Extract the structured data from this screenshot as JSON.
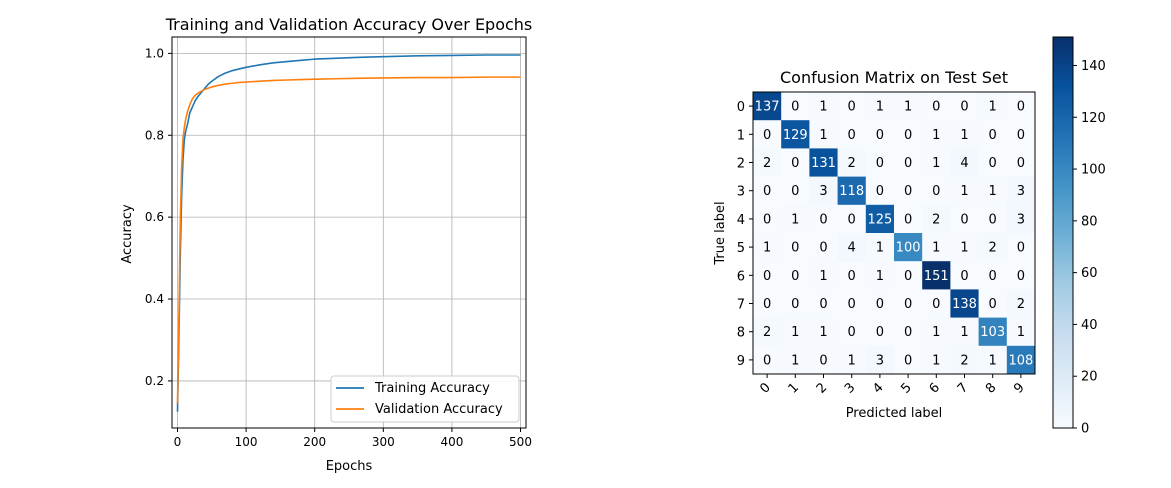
{
  "chart_data": [
    {
      "type": "line",
      "title": "Training and Validation Accuracy Over Epochs",
      "xlabel": "Epochs",
      "ylabel": "Accuracy",
      "xlim": [
        -8,
        508
      ],
      "ylim": [
        0.085,
        1.04
      ],
      "xticks": [
        0,
        100,
        200,
        300,
        400,
        500
      ],
      "yticks": [
        0.2,
        0.4,
        0.6,
        0.8,
        1.0
      ],
      "xtick_labels": [
        "0",
        "100",
        "200",
        "300",
        "400",
        "500"
      ],
      "ytick_labels": [
        "0.2",
        "0.4",
        "0.6",
        "0.8",
        "1.0"
      ],
      "grid": true,
      "legend_position": "bottom-right",
      "series": [
        {
          "name": "Training Accuracy",
          "color": "#1f77b4",
          "x": [
            0,
            2,
            4,
            6,
            8,
            10,
            12,
            15,
            18,
            22,
            26,
            30,
            35,
            40,
            45,
            50,
            60,
            70,
            80,
            90,
            100,
            120,
            140,
            160,
            180,
            200,
            230,
            260,
            300,
            350,
            400,
            450,
            500
          ],
          "y": [
            0.125,
            0.3,
            0.5,
            0.65,
            0.74,
            0.79,
            0.81,
            0.83,
            0.855,
            0.87,
            0.885,
            0.895,
            0.905,
            0.915,
            0.925,
            0.932,
            0.944,
            0.952,
            0.958,
            0.962,
            0.966,
            0.972,
            0.977,
            0.98,
            0.983,
            0.986,
            0.988,
            0.99,
            0.992,
            0.994,
            0.995,
            0.996,
            0.996
          ]
        },
        {
          "name": "Validation Accuracy",
          "color": "#ff7f0e",
          "x": [
            0,
            2,
            4,
            6,
            8,
            10,
            12,
            15,
            18,
            22,
            26,
            30,
            35,
            40,
            45,
            50,
            60,
            70,
            80,
            90,
            100,
            120,
            140,
            160,
            180,
            200,
            230,
            260,
            300,
            350,
            400,
            450,
            500
          ],
          "y": [
            0.145,
            0.35,
            0.58,
            0.72,
            0.79,
            0.82,
            0.84,
            0.86,
            0.875,
            0.89,
            0.898,
            0.903,
            0.908,
            0.912,
            0.915,
            0.918,
            0.922,
            0.925,
            0.927,
            0.929,
            0.93,
            0.932,
            0.934,
            0.935,
            0.936,
            0.937,
            0.938,
            0.939,
            0.94,
            0.941,
            0.941,
            0.942,
            0.942
          ]
        }
      ]
    },
    {
      "type": "heatmap",
      "title": "Confusion Matrix on Test Set",
      "xlabel": "Predicted label",
      "ylabel": "True label",
      "labels": [
        "0",
        "1",
        "2",
        "3",
        "4",
        "5",
        "6",
        "7",
        "8",
        "9"
      ],
      "colormap": "Blues",
      "vmin": 0,
      "vmax": 151,
      "colorbar_ticks": [
        0,
        20,
        40,
        60,
        80,
        100,
        120,
        140
      ],
      "matrix": [
        [
          137,
          0,
          1,
          0,
          1,
          1,
          0,
          0,
          1,
          0
        ],
        [
          0,
          129,
          1,
          0,
          0,
          0,
          1,
          1,
          0,
          0
        ],
        [
          2,
          0,
          131,
          2,
          0,
          0,
          1,
          4,
          0,
          0
        ],
        [
          0,
          0,
          3,
          118,
          0,
          0,
          0,
          1,
          1,
          3
        ],
        [
          0,
          1,
          0,
          0,
          125,
          0,
          2,
          0,
          0,
          3
        ],
        [
          1,
          0,
          0,
          4,
          1,
          100,
          1,
          1,
          2,
          0
        ],
        [
          0,
          0,
          1,
          0,
          1,
          0,
          151,
          0,
          0,
          0
        ],
        [
          0,
          0,
          0,
          0,
          0,
          0,
          0,
          138,
          0,
          2
        ],
        [
          2,
          1,
          1,
          0,
          0,
          0,
          1,
          1,
          103,
          1
        ],
        [
          0,
          1,
          0,
          1,
          3,
          0,
          1,
          2,
          1,
          108
        ]
      ]
    }
  ]
}
